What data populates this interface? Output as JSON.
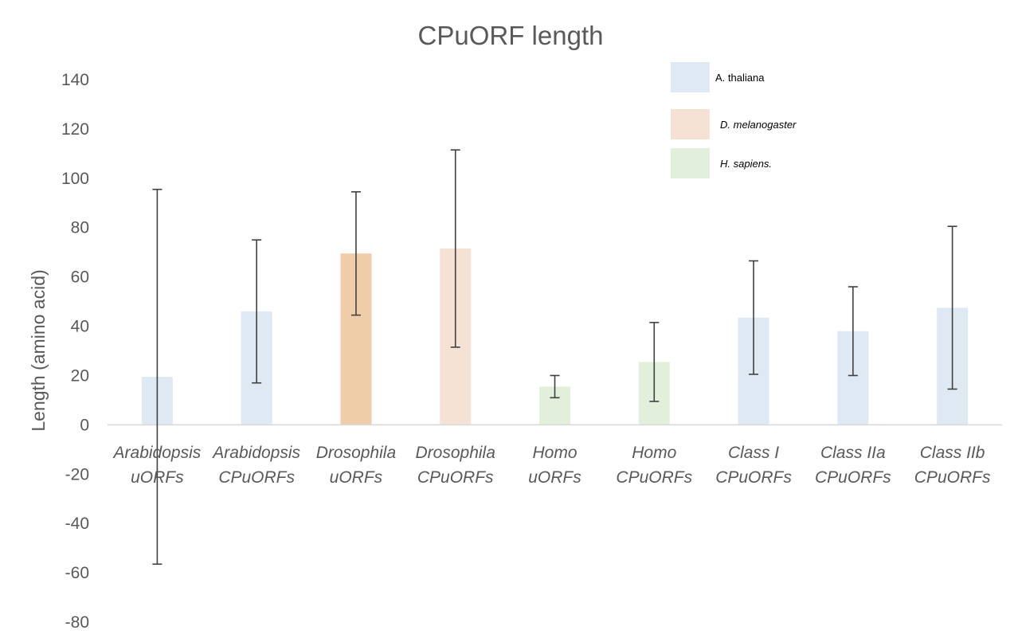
{
  "chart_data": {
    "type": "bar",
    "title": "CPuORF length",
    "xlabel": "",
    "ylabel": "Length (amino acid)",
    "ylim": [
      -80,
      140
    ],
    "yticks": [
      -80,
      -60,
      -40,
      -20,
      0,
      20,
      40,
      60,
      80,
      100,
      120,
      140
    ],
    "grid": false,
    "legend_position": "top-right",
    "categories": [
      [
        "Arabidopsis",
        "uORFs"
      ],
      [
        "Arabidopsis",
        "CPuORFs"
      ],
      [
        "Drosophila",
        "uORFs"
      ],
      [
        "Drosophila",
        "CPuORFs"
      ],
      [
        "Homo",
        "uORFs"
      ],
      [
        "Homo",
        "CPuORFs"
      ],
      [
        "Class I",
        "CPuORFs"
      ],
      [
        "Class IIa",
        "CPuORFs"
      ],
      [
        "Class IIb",
        "CPuORFs"
      ]
    ],
    "values": [
      19.5,
      46,
      69.5,
      71.5,
      15.5,
      25.5,
      43.5,
      38,
      47.5
    ],
    "error": [
      76,
      29,
      25,
      40,
      4.5,
      16,
      23,
      18,
      33
    ],
    "bar_colors": [
      "#dfe9f4",
      "#dfe9f4",
      "#f0cda9",
      "#f6e2d4",
      "#e2efda",
      "#e2efda",
      "#dfe9f4",
      "#dfe9f4",
      "#dfe9f4"
    ],
    "legend": [
      {
        "label": "A. thaliana",
        "color": "#dfe9f4",
        "italic": false
      },
      {
        "label": "D. melanogaster",
        "color": "#f6e2d4",
        "italic": true
      },
      {
        "label": "H. sapiens.",
        "color": "#e2efda",
        "italic": true
      }
    ]
  }
}
